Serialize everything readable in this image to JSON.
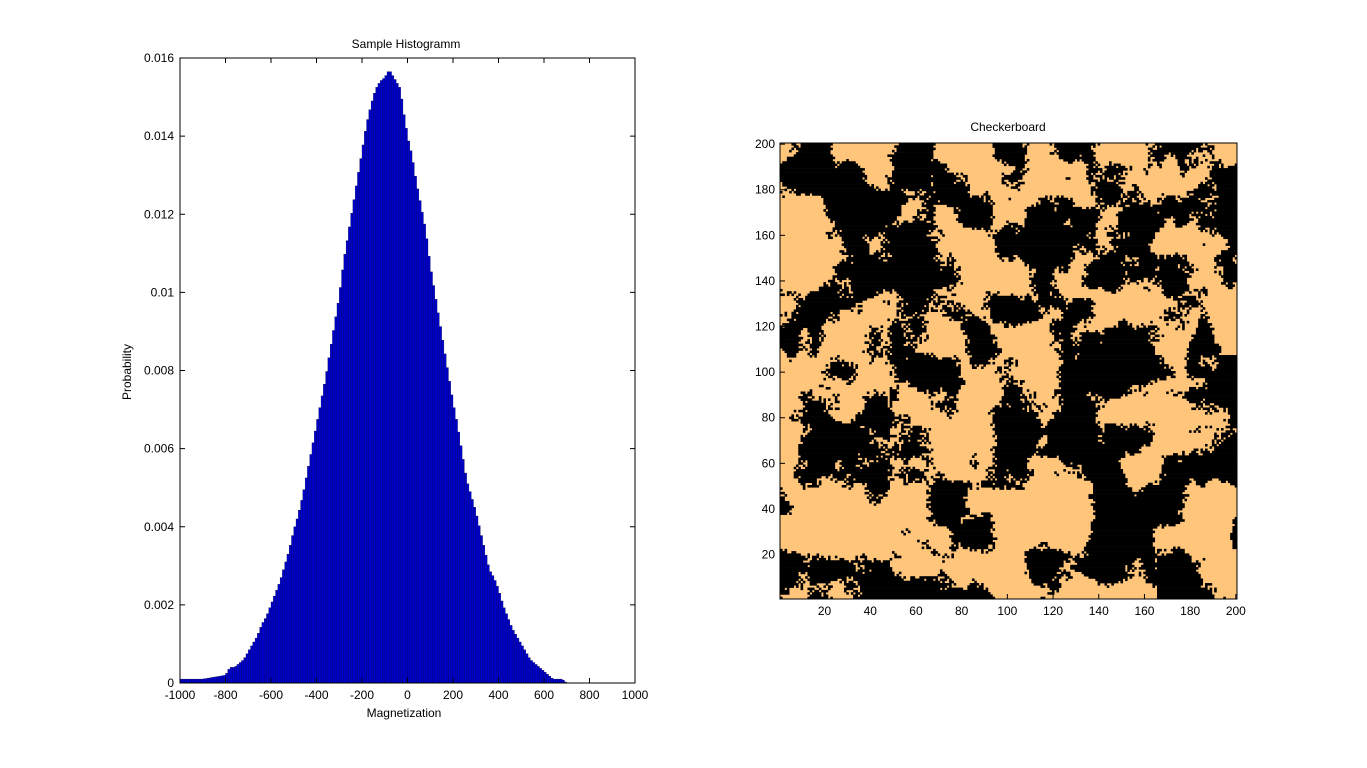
{
  "chart_data": [
    {
      "type": "bar",
      "title": "Sample Histogramm",
      "xlabel": "Magnetization",
      "ylabel": "Probability",
      "xlim": [
        -1000,
        1000
      ],
      "ylim": [
        0,
        0.016
      ],
      "xticks": [
        "-1000",
        "-800",
        "-600",
        "-400",
        "-200",
        "0",
        "200",
        "400",
        "600",
        "800",
        "1000"
      ],
      "yticks": [
        "0",
        "0.002",
        "0.004",
        "0.006",
        "0.008",
        "0.01",
        "0.012",
        "0.014",
        "0.016"
      ],
      "bar_color": "#0000cc",
      "bin_width": 10,
      "x": [
        -1000,
        -900,
        -800,
        -780,
        -760,
        -740,
        -720,
        -700,
        -680,
        -660,
        -640,
        -620,
        -600,
        -580,
        -560,
        -540,
        -520,
        -500,
        -480,
        -460,
        -440,
        -420,
        -400,
        -380,
        -360,
        -340,
        -320,
        -300,
        -280,
        -260,
        -240,
        -220,
        -200,
        -180,
        -160,
        -140,
        -120,
        -100,
        -80,
        -60,
        -40,
        -30,
        -20,
        -10,
        0,
        20,
        40,
        60,
        80,
        100,
        120,
        140,
        160,
        180,
        200,
        220,
        240,
        260,
        280,
        300,
        320,
        340,
        360,
        380,
        400,
        420,
        440,
        460,
        480,
        500,
        520,
        540,
        560,
        580,
        600,
        620,
        640,
        660,
        680,
        700,
        720,
        740,
        760,
        780,
        800
      ],
      "values": [
        0.0001,
        0.0001,
        0.0002,
        0.0004,
        0.0004,
        0.0005,
        0.0006,
        0.0008,
        0.001,
        0.0012,
        0.0015,
        0.0017,
        0.002,
        0.0023,
        0.0026,
        0.003,
        0.0034,
        0.0039,
        0.0043,
        0.0048,
        0.0054,
        0.006,
        0.0066,
        0.0072,
        0.0078,
        0.0085,
        0.0092,
        0.0099,
        0.0108,
        0.0115,
        0.0122,
        0.0129,
        0.0136,
        0.0143,
        0.0148,
        0.0152,
        0.0154,
        0.0155,
        0.0157,
        0.0155,
        0.0153,
        0.0152,
        0.0147,
        0.0144,
        0.014,
        0.0135,
        0.0128,
        0.0122,
        0.0116,
        0.0107,
        0.01,
        0.0093,
        0.0086,
        0.0079,
        0.0072,
        0.0066,
        0.0059,
        0.0052,
        0.0048,
        0.0044,
        0.0039,
        0.0034,
        0.0029,
        0.0027,
        0.0024,
        0.002,
        0.0017,
        0.0014,
        0.0012,
        0.001,
        0.0008,
        0.0006,
        0.0005,
        0.0004,
        0.0003,
        0.0002,
        0.0001,
        0.0001,
        0.0001,
        0.0,
        0.0,
        0.0,
        0.0,
        0.0,
        0.0
      ]
    },
    {
      "type": "heatmap",
      "title": "Checkerboard",
      "xlim": [
        1,
        200
      ],
      "ylim": [
        1,
        200
      ],
      "xticks": [
        "20",
        "40",
        "60",
        "80",
        "100",
        "120",
        "140",
        "160",
        "180",
        "200"
      ],
      "yticks": [
        "20",
        "40",
        "60",
        "80",
        "100",
        "120",
        "140",
        "160",
        "180",
        "200"
      ],
      "colors": {
        "up": "#ffc57a",
        "down": "#000000"
      },
      "grid_size": 200
    }
  ]
}
